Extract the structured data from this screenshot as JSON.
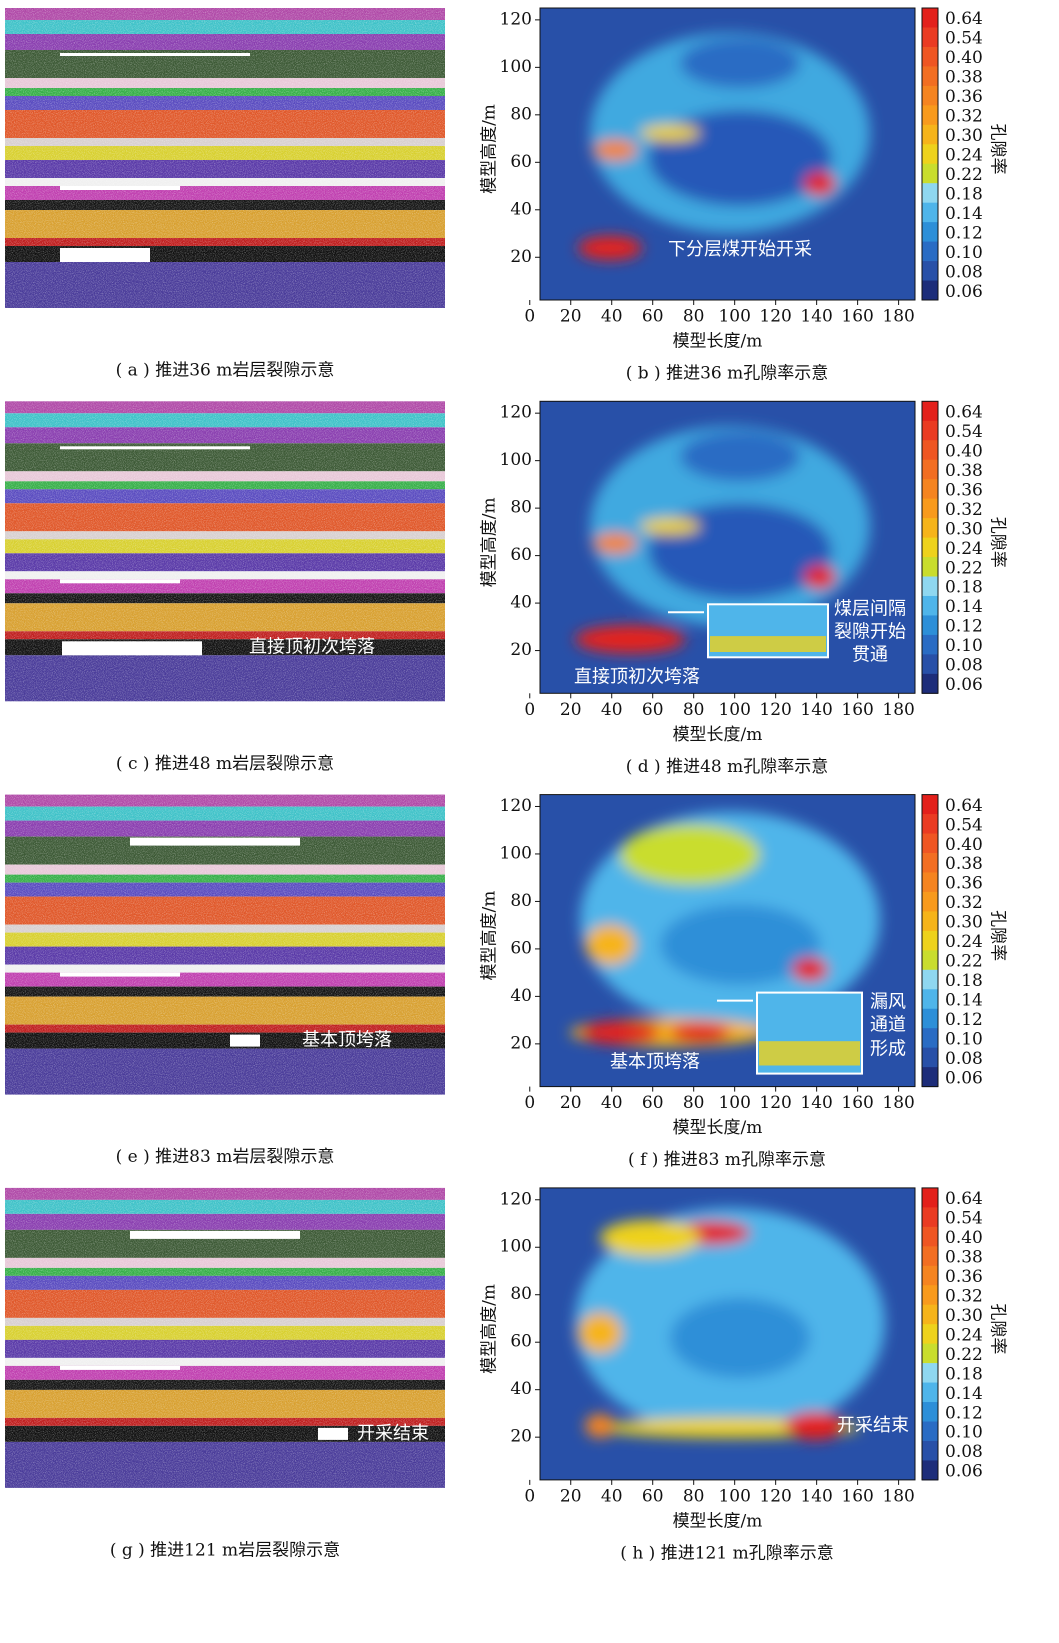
{
  "axes": {
    "xlabel": "模型长度/m",
    "ylabel": "模型高度/m",
    "xlim": [
      5,
      188
    ],
    "ylim": [
      2,
      125
    ],
    "xticks": [
      0,
      20,
      40,
      60,
      80,
      100,
      120,
      140,
      160,
      180
    ],
    "yticks": [
      20,
      40,
      60,
      80,
      100,
      120
    ]
  },
  "colorbar": {
    "label": "孔隙率",
    "levels": [
      0.64,
      0.54,
      {
        "value": 0.4,
        "label": "0.40"
      },
      0.38,
      0.36,
      0.32,
      {
        "value": 0.3,
        "label": "0.30"
      },
      0.24,
      0.22,
      0.18,
      0.14,
      0.12,
      {
        "value": 0.1,
        "label": "0.10"
      },
      0.08,
      0.06
    ],
    "colors": [
      "#e3201b",
      "#ea3b22",
      "#ef5623",
      "#f26e22",
      "#f58420",
      "#f89a1c",
      "#f6b41a",
      "#eed21c",
      "#c9dd2e",
      "#8fd7f0",
      "#4fb5ea",
      "#2d8fd8",
      "#2a6cc4",
      "#2850a8",
      "#1d2d7a"
    ]
  },
  "panels": [
    {
      "strata_caption": "( a ) 推进36 m岩层裂隙示意",
      "porosity_caption": "( b ) 推进36 m孔隙率示意",
      "porosity_annotations": [
        "下分层煤开始开采"
      ]
    },
    {
      "strata_caption": "( c ) 推进48 m岩层裂隙示意",
      "strata_annotations": [
        "直接顶初次垮落"
      ],
      "porosity_caption": "( d ) 推进48 m孔隙率示意",
      "porosity_annotations": [
        "直接顶初次垮落",
        "煤层间隔",
        "裂隙开始",
        "贯通"
      ]
    },
    {
      "strata_caption": "( e ) 推进83 m岩层裂隙示意",
      "strata_annotations": [
        "基本顶垮落"
      ],
      "porosity_caption": "( f ) 推进83 m孔隙率示意",
      "porosity_annotations": [
        "基本顶垮落",
        "漏风",
        "通道",
        "形成"
      ]
    },
    {
      "strata_caption": "( g ) 推进121 m岩层裂隙示意",
      "strata_annotations": [
        "开采结束"
      ],
      "porosity_caption": "( h ) 推进121 m孔隙率示意",
      "porosity_annotations": [
        "开采结束"
      ]
    }
  ]
}
